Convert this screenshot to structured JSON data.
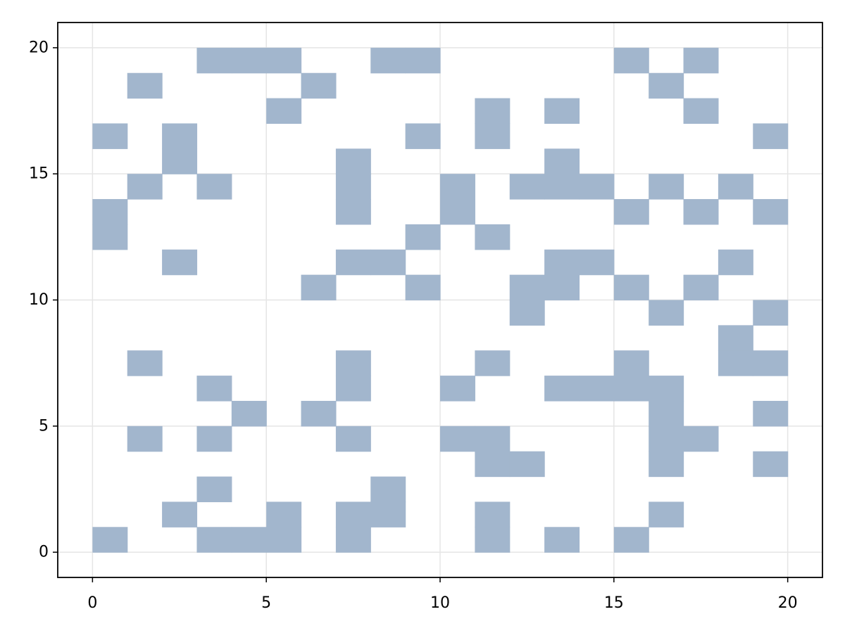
{
  "chart_data": {
    "type": "heatmap",
    "title": "",
    "xlabel": "",
    "ylabel": "",
    "xlim": [
      -1,
      21
    ],
    "ylim": [
      -1,
      21
    ],
    "x_ticks": [
      0,
      5,
      10,
      15,
      20
    ],
    "y_ticks": [
      0,
      5,
      10,
      15,
      20
    ],
    "x_tick_labels": [
      "0",
      "5",
      "10",
      "15",
      "20"
    ],
    "y_tick_labels": [
      "0",
      "5",
      "10",
      "15",
      "20"
    ],
    "grid": true,
    "cell_size": 1,
    "cell_color": "#a2b6cd",
    "grid_color": "#e5e5e5",
    "filled_cells": [
      [
        3,
        20
      ],
      [
        4,
        20
      ],
      [
        5,
        20
      ],
      [
        8,
        20
      ],
      [
        9,
        20
      ],
      [
        15,
        20
      ],
      [
        17,
        20
      ],
      [
        1,
        19
      ],
      [
        6,
        19
      ],
      [
        16,
        19
      ],
      [
        5,
        18
      ],
      [
        11,
        18
      ],
      [
        13,
        18
      ],
      [
        17,
        18
      ],
      [
        0,
        17
      ],
      [
        2,
        17
      ],
      [
        9,
        17
      ],
      [
        11,
        17
      ],
      [
        19,
        17
      ],
      [
        2,
        16
      ],
      [
        7,
        16
      ],
      [
        13,
        16
      ],
      [
        1,
        15
      ],
      [
        3,
        15
      ],
      [
        7,
        15
      ],
      [
        10,
        15
      ],
      [
        12,
        15
      ],
      [
        13,
        15
      ],
      [
        14,
        15
      ],
      [
        16,
        15
      ],
      [
        18,
        15
      ],
      [
        0,
        14
      ],
      [
        7,
        14
      ],
      [
        10,
        14
      ],
      [
        15,
        14
      ],
      [
        17,
        14
      ],
      [
        19,
        14
      ],
      [
        0,
        13
      ],
      [
        9,
        13
      ],
      [
        11,
        13
      ],
      [
        2,
        12
      ],
      [
        7,
        12
      ],
      [
        8,
        12
      ],
      [
        13,
        12
      ],
      [
        14,
        12
      ],
      [
        18,
        12
      ],
      [
        6,
        11
      ],
      [
        9,
        11
      ],
      [
        12,
        11
      ],
      [
        13,
        11
      ],
      [
        15,
        11
      ],
      [
        17,
        11
      ],
      [
        12,
        10
      ],
      [
        16,
        10
      ],
      [
        19,
        10
      ],
      [
        18,
        9
      ],
      [
        1,
        8
      ],
      [
        7,
        8
      ],
      [
        11,
        8
      ],
      [
        15,
        8
      ],
      [
        18,
        8
      ],
      [
        19,
        8
      ],
      [
        3,
        7
      ],
      [
        7,
        7
      ],
      [
        10,
        7
      ],
      [
        13,
        7
      ],
      [
        14,
        7
      ],
      [
        15,
        7
      ],
      [
        16,
        7
      ],
      [
        4,
        6
      ],
      [
        6,
        6
      ],
      [
        16,
        6
      ],
      [
        19,
        6
      ],
      [
        1,
        5
      ],
      [
        3,
        5
      ],
      [
        7,
        5
      ],
      [
        10,
        5
      ],
      [
        11,
        5
      ],
      [
        16,
        5
      ],
      [
        17,
        5
      ],
      [
        11,
        4
      ],
      [
        12,
        4
      ],
      [
        16,
        4
      ],
      [
        19,
        4
      ],
      [
        3,
        3
      ],
      [
        8,
        3
      ],
      [
        2,
        2
      ],
      [
        5,
        2
      ],
      [
        7,
        2
      ],
      [
        8,
        2
      ],
      [
        11,
        2
      ],
      [
        16,
        2
      ],
      [
        0,
        1
      ],
      [
        3,
        1
      ],
      [
        4,
        1
      ],
      [
        5,
        1
      ],
      [
        7,
        1
      ],
      [
        11,
        1
      ],
      [
        13,
        1
      ],
      [
        15,
        1
      ]
    ]
  }
}
